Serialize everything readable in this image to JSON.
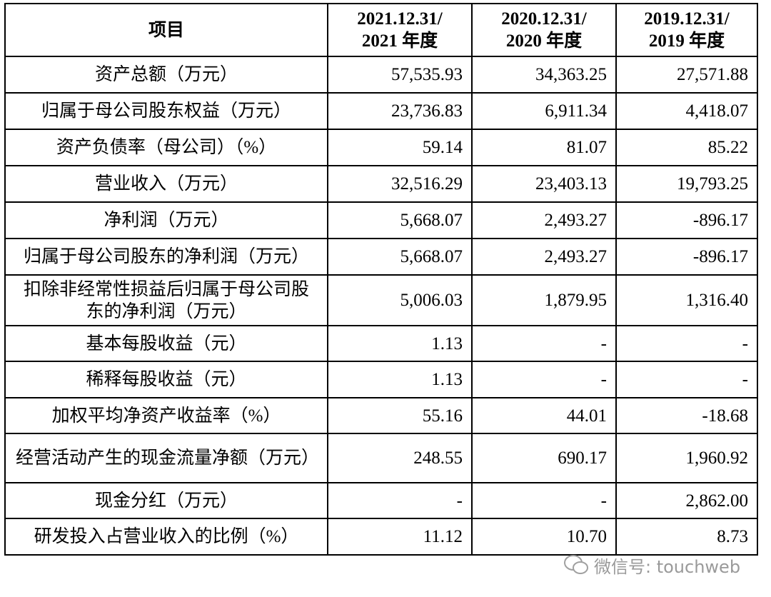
{
  "table": {
    "header": {
      "item": "项目",
      "periods": [
        [
          "2021.12.31/",
          "2021 年度"
        ],
        [
          "2020.12.31/",
          "2020 年度"
        ],
        [
          "2019.12.31/",
          "2019 年度"
        ]
      ]
    },
    "rows": [
      [
        "资产总额（万元）",
        "57,535.93",
        "34,363.25",
        "27,571.88"
      ],
      [
        "归属于母公司股东权益（万元）",
        "23,736.83",
        "6,911.34",
        "4,418.07"
      ],
      [
        "资产负债率（母公司）（%）",
        "59.14",
        "81.07",
        "85.22"
      ],
      [
        "营业收入（万元）",
        "32,516.29",
        "23,403.13",
        "19,793.25"
      ],
      [
        "净利润（万元）",
        "5,668.07",
        "2,493.27",
        "-896.17"
      ],
      [
        "归属于母公司股东的净利润（万元）",
        "5,668.07",
        "2,493.27",
        "-896.17"
      ],
      [
        "扣除非经常性损益后归属于母公司股东的净利润（万元）",
        "5,006.03",
        "1,879.95",
        "1,316.40"
      ],
      [
        "基本每股收益（元）",
        "1.13",
        "-",
        "-"
      ],
      [
        "稀释每股收益（元）",
        "1.13",
        "-",
        "-"
      ],
      [
        "加权平均净资产收益率（%）",
        "55.16",
        "44.01",
        "-18.68"
      ],
      [
        "经营活动产生的现金流量净额（万元）",
        "248.55",
        "690.17",
        "1,960.92"
      ],
      [
        "现金分红（万元）",
        "-",
        "-",
        "2,862.00"
      ],
      [
        "研发投入占营业收入的比例（%）",
        "11.12",
        "10.70",
        "8.73"
      ]
    ]
  },
  "watermark": "微信号: touchweb"
}
